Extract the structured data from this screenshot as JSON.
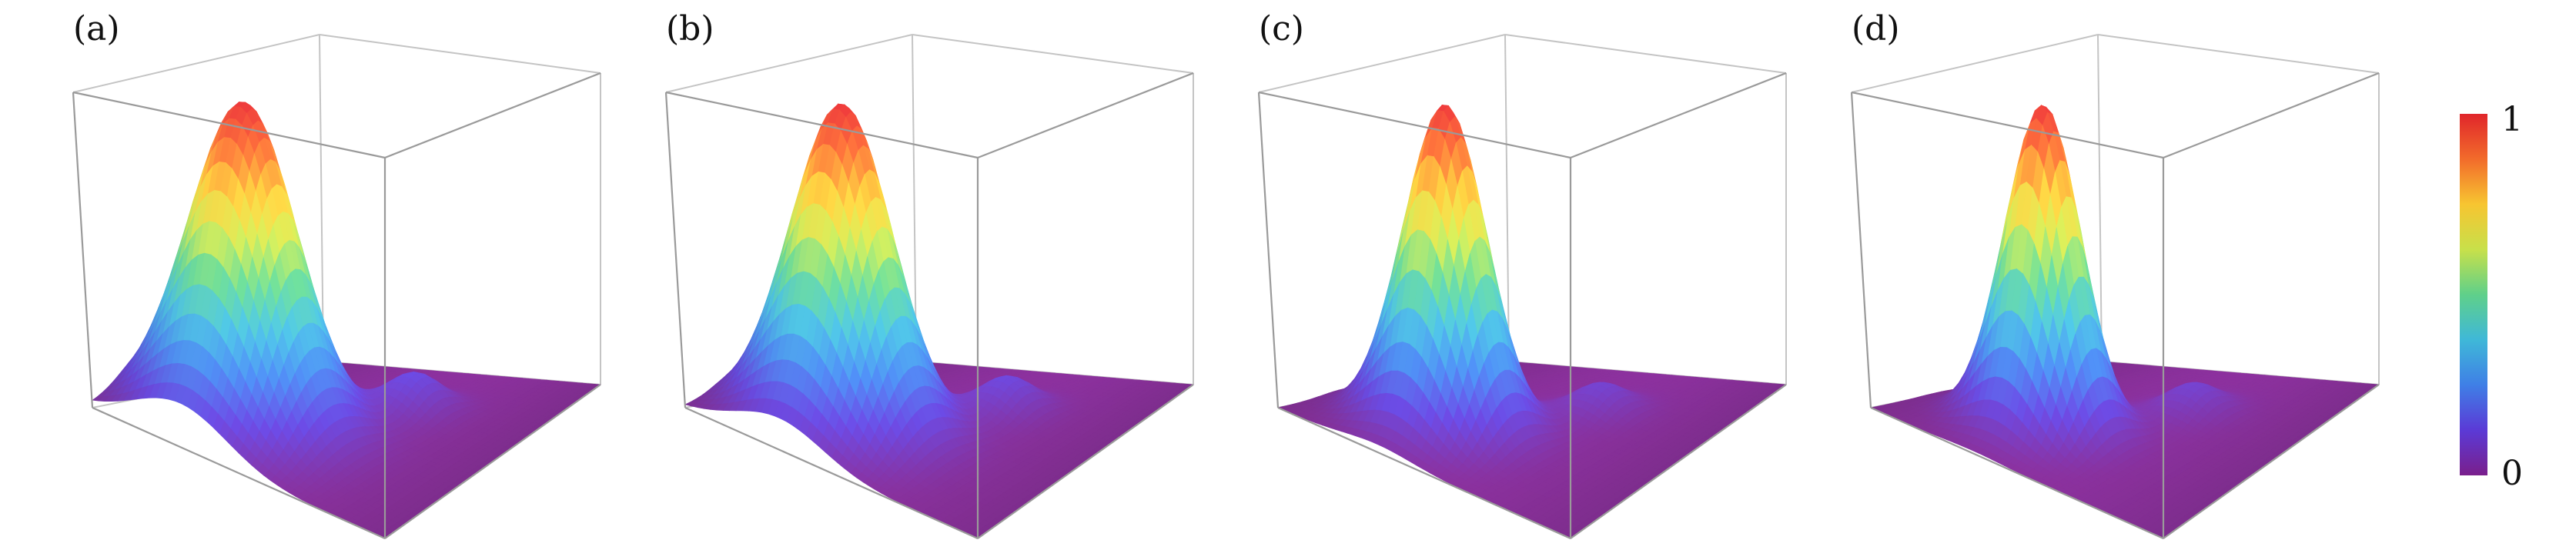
{
  "chart_data": {
    "type": "surface",
    "panels": [
      {
        "label": "(a)",
        "peak": {
          "x": 0.3,
          "y": 0.28,
          "height": 1.0,
          "width_x": 0.16,
          "width_y": 0.14
        },
        "secondary": {
          "x": 0.6,
          "y": 0.66,
          "height": 0.12,
          "width": 0.08
        },
        "dip": {
          "x": 0.4,
          "y": 0.45,
          "depth": 0.05
        }
      },
      {
        "label": "(b)",
        "peak": {
          "x": 0.32,
          "y": 0.28,
          "height": 1.0,
          "width_x": 0.15,
          "width_y": 0.13
        },
        "secondary": {
          "x": 0.6,
          "y": 0.66,
          "height": 0.11,
          "width": 0.08
        },
        "dip": {
          "x": 0.41,
          "y": 0.45,
          "depth": 0.05
        }
      },
      {
        "label": "(c)",
        "peak": {
          "x": 0.34,
          "y": 0.3,
          "height": 1.0,
          "width_x": 0.12,
          "width_y": 0.11
        },
        "secondary": {
          "x": 0.6,
          "y": 0.66,
          "height": 0.09,
          "width": 0.08
        },
        "dip": {
          "x": 0.42,
          "y": 0.46,
          "depth": 0.04
        }
      },
      {
        "label": "(d)",
        "peak": {
          "x": 0.35,
          "y": 0.31,
          "height": 1.0,
          "width_x": 0.11,
          "width_y": 0.1
        },
        "secondary": {
          "x": 0.6,
          "y": 0.66,
          "height": 0.09,
          "width": 0.08
        },
        "dip": {
          "x": 0.43,
          "y": 0.47,
          "depth": 0.04
        }
      }
    ],
    "colorbar": {
      "min_label": "0",
      "max_label": "1",
      "range": [
        0,
        1
      ],
      "colors": [
        "#7a1f8c",
        "#5b3ad6",
        "#3f7fe6",
        "#3fb8d8",
        "#5fd08a",
        "#c8e04a",
        "#f7c531",
        "#f26b2b",
        "#e0262b"
      ]
    },
    "grid": false,
    "legend": "none"
  }
}
